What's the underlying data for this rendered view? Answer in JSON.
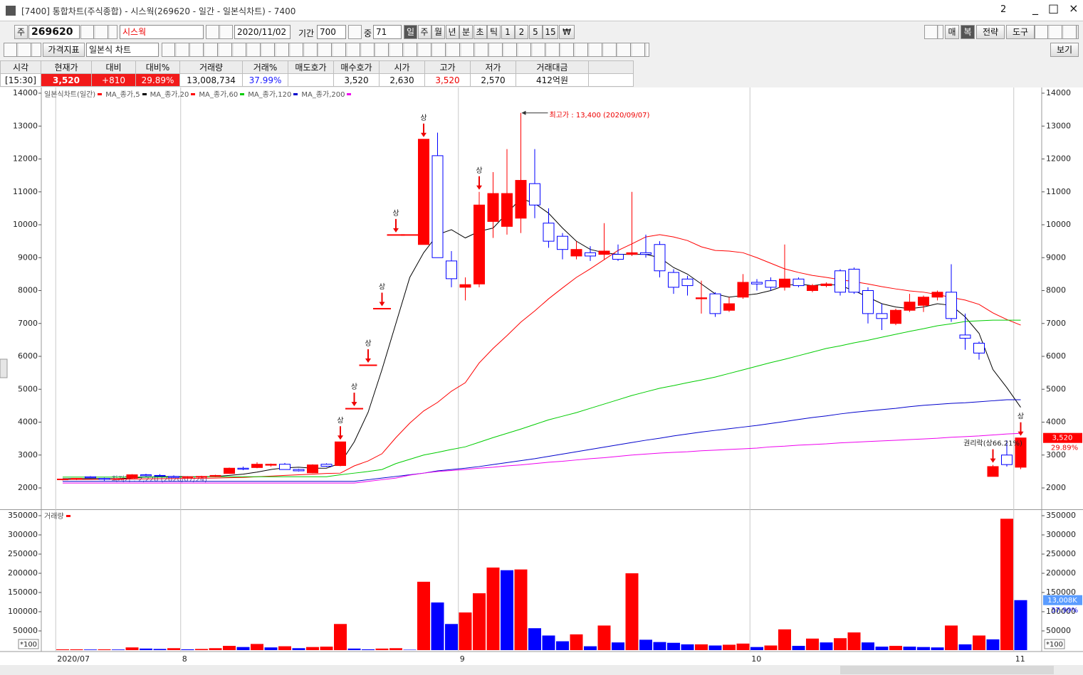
{
  "window": {
    "title": "[7400] 통합차트(주식종합) - 시스웍(269620 - 일간 - 일본식차트) - 7400",
    "badge": "2"
  },
  "toolbar": {
    "code_prefix": "주",
    "code": "269620",
    "name": "시스웍",
    "date": "2020/11/02",
    "period_label": "기간",
    "period": "700",
    "mid_label": "중",
    "mid": "71",
    "periods": [
      "일",
      "주",
      "월",
      "년",
      "분",
      "초",
      "틱",
      "1",
      "2",
      "5",
      "15",
      "₩"
    ],
    "right_buttons": [
      "매",
      "복",
      "전략",
      "도구"
    ],
    "indicator": "가격지표",
    "chart_style": "일본식 차트",
    "view": "보기"
  },
  "quote": {
    "cells": [
      {
        "header": "시각",
        "value": "[15:30]"
      },
      {
        "header": "현재가",
        "value": "3,520"
      },
      {
        "header": "대비",
        "value": "+810"
      },
      {
        "header": "대비%",
        "value": "29.89%"
      },
      {
        "header": "거래량",
        "value": "13,008,734"
      },
      {
        "header": "거래%",
        "value": "37.99%"
      },
      {
        "header": "매도호가"
      },
      {
        "header": "매수호가",
        "value": "3,520"
      },
      {
        "header": "시가",
        "value": "2,630"
      },
      {
        "header": "고가",
        "value": "3,520"
      },
      {
        "header": "저가",
        "value": "2,570"
      },
      {
        "header": "거래대금",
        "value": "412억원"
      }
    ]
  },
  "chart_data": [
    {
      "type": "candlestick",
      "title": "일본식차트(일간)",
      "categories": [
        "2020/07",
        null,
        null,
        null,
        null,
        null,
        null,
        null,
        null,
        "8",
        null,
        null,
        null,
        null,
        null,
        null,
        null,
        null,
        null,
        null,
        null,
        null,
        null,
        null,
        null,
        null,
        null,
        null,
        null,
        "9",
        null,
        null,
        null,
        null,
        null,
        null,
        null,
        null,
        null,
        null,
        null,
        null,
        null,
        null,
        null,
        null,
        null,
        null,
        null,
        null,
        "10",
        null,
        null,
        null,
        null,
        null,
        null,
        null,
        null,
        null,
        null,
        null,
        null,
        null,
        null,
        null,
        null,
        null,
        null,
        "11"
      ],
      "open": [
        2250,
        2260,
        2340,
        2290,
        2270,
        2300,
        2400,
        2380,
        2350,
        2320,
        2330,
        2350,
        2440,
        2600,
        2620,
        2690,
        2720,
        2560,
        2460,
        2720,
        2680,
        4420,
        5740,
        7460,
        9700,
        9700,
        9400,
        12100,
        8900,
        8100,
        8200,
        10100,
        9950,
        10200,
        11250,
        10050,
        9650,
        9050,
        9150,
        9100,
        9100,
        9100,
        9150,
        9400,
        8550,
        8350,
        7750,
        7900,
        7400,
        7800,
        8250,
        8300,
        8100,
        8350,
        8000,
        8150,
        8600,
        8650,
        8000,
        7300,
        7000,
        7400,
        7550,
        7800,
        7950,
        6650,
        6400,
        2350,
        3000,
        2630
      ],
      "high": [
        2280,
        2300,
        2360,
        2310,
        2300,
        2420,
        2430,
        2420,
        2380,
        2360,
        2370,
        2400,
        2620,
        2650,
        2780,
        2740,
        2760,
        2580,
        2720,
        2750,
        3400,
        4420,
        5740,
        7460,
        9700,
        9700,
        12600,
        12800,
        9200,
        8400,
        11000,
        11600,
        12300,
        13400,
        12300,
        10500,
        9750,
        9500,
        9350,
        10050,
        9400,
        11000,
        9700,
        9500,
        8650,
        8450,
        8300,
        7950,
        7800,
        8500,
        8350,
        8400,
        9400,
        8400,
        8200,
        8250,
        8650,
        8700,
        8100,
        7600,
        7450,
        7900,
        7850,
        8000,
        8800,
        7300,
        6450,
        2700,
        3450,
        3520
      ],
      "low": [
        2230,
        2240,
        2300,
        2220,
        2240,
        2280,
        2350,
        2340,
        2300,
        2300,
        2300,
        2330,
        2430,
        2540,
        2600,
        2650,
        2560,
        2500,
        2450,
        2640,
        2660,
        4420,
        5740,
        7460,
        9700,
        9700,
        9400,
        9000,
        8100,
        7700,
        8100,
        9600,
        9700,
        9750,
        10200,
        9300,
        8950,
        8950,
        8900,
        8950,
        8900,
        9050,
        9000,
        8400,
        7900,
        7850,
        7300,
        7200,
        7350,
        7750,
        8000,
        8000,
        8000,
        8100,
        7950,
        8100,
        7850,
        7900,
        7000,
        6800,
        6950,
        7350,
        7350,
        7700,
        7050,
        6200,
        5900,
        2350,
        2650,
        2570
      ],
      "close": [
        2270,
        2290,
        2310,
        2260,
        2280,
        2400,
        2370,
        2360,
        2320,
        2340,
        2350,
        2380,
        2600,
        2570,
        2720,
        2720,
        2560,
        2520,
        2700,
        2660,
        3400,
        4420,
        5740,
        7460,
        9700,
        9700,
        12600,
        9000,
        8360,
        8180,
        10600,
        10950,
        10950,
        11350,
        10600,
        9500,
        9250,
        9250,
        9050,
        9200,
        8950,
        9150,
        9100,
        8600,
        8100,
        8150,
        7780,
        7300,
        7600,
        8250,
        8200,
        8100,
        8350,
        8150,
        8150,
        8200,
        7950,
        7950,
        7300,
        7150,
        7400,
        7650,
        7800,
        7950,
        7150,
        6550,
        6100,
        2650,
        2710,
        3520
      ],
      "up_color": "#ff0000",
      "down_color": "#0000ff",
      "series": [
        {
          "name": "MA_종가,5",
          "color": "#000000",
          "values": [
            2280,
            2280,
            2285,
            2280,
            2285,
            2300,
            2330,
            2340,
            2350,
            2340,
            2340,
            2350,
            2380,
            2420,
            2480,
            2560,
            2610,
            2630,
            2600,
            2600,
            2750,
            3400,
            4300,
            5600,
            7000,
            8400,
            9150,
            9700,
            9850,
            9600,
            9800,
            9900,
            10350,
            10800,
            10650,
            10350,
            9900,
            9500,
            9250,
            9150,
            9100,
            9100,
            9100,
            9000,
            8700,
            8500,
            8200,
            7900,
            7800,
            7850,
            7900,
            8000,
            8150,
            8200,
            8150,
            8200,
            8150,
            8000,
            7800,
            7600,
            7500,
            7450,
            7500,
            7600,
            7550,
            7200,
            6700,
            5600,
            5050,
            4450
          ]
        },
        {
          "name": "MA_종가,20",
          "color": "#ff0000",
          "values": [
            2260,
            2260,
            2260,
            2265,
            2265,
            2270,
            2275,
            2280,
            2285,
            2290,
            2295,
            2300,
            2310,
            2320,
            2340,
            2360,
            2380,
            2400,
            2420,
            2440,
            2450,
            2670,
            2820,
            3040,
            3530,
            3970,
            4340,
            4600,
            4940,
            5200,
            5800,
            6240,
            6630,
            7040,
            7380,
            7750,
            8080,
            8400,
            8660,
            8940,
            9220,
            9420,
            9630,
            9700,
            9630,
            9520,
            9330,
            9220,
            9200,
            9150,
            9000,
            8830,
            8660,
            8550,
            8460,
            8400,
            8330,
            8270,
            8200,
            8120,
            8050,
            7990,
            7950,
            7880,
            7790,
            7710,
            7580,
            7320,
            7120,
            6950
          ]
        },
        {
          "name": "MA_종가,60",
          "color": "#00cc00",
          "values": [
            2330,
            2330,
            2330,
            2330,
            2330,
            2330,
            2330,
            2330,
            2330,
            2330,
            2340,
            2340,
            2340,
            2340,
            2340,
            2340,
            2340,
            2340,
            2340,
            2340,
            2400,
            2450,
            2500,
            2560,
            2740,
            2870,
            3000,
            3080,
            3170,
            3250,
            3390,
            3530,
            3660,
            3790,
            3930,
            4070,
            4180,
            4290,
            4420,
            4550,
            4680,
            4810,
            4920,
            5030,
            5110,
            5200,
            5280,
            5370,
            5480,
            5590,
            5700,
            5810,
            5910,
            6020,
            6130,
            6240,
            6320,
            6410,
            6490,
            6580,
            6670,
            6760,
            6840,
            6930,
            6990,
            7060,
            7080,
            7100,
            7100,
            7100
          ]
        },
        {
          "name": "MA_종가,120",
          "color": "#0000cc",
          "values": [
            2200,
            2200,
            2200,
            2200,
            2200,
            2200,
            2200,
            2200,
            2200,
            2200,
            2200,
            2200,
            2200,
            2200,
            2200,
            2200,
            2200,
            2200,
            2200,
            2200,
            2200,
            2200,
            2250,
            2300,
            2350,
            2400,
            2450,
            2520,
            2560,
            2600,
            2650,
            2710,
            2770,
            2830,
            2890,
            2960,
            3030,
            3100,
            3170,
            3240,
            3310,
            3380,
            3450,
            3510,
            3580,
            3640,
            3700,
            3750,
            3800,
            3850,
            3900,
            3960,
            4020,
            4080,
            4140,
            4190,
            4250,
            4300,
            4340,
            4380,
            4420,
            4470,
            4510,
            4540,
            4570,
            4590,
            4620,
            4650,
            4680,
            4680
          ]
        },
        {
          "name": "MA_종가,200",
          "color": "#ee00ee",
          "values": [
            2150,
            2150,
            2150,
            2150,
            2150,
            2150,
            2150,
            2150,
            2150,
            2150,
            2150,
            2150,
            2150,
            2150,
            2150,
            2150,
            2150,
            2150,
            2150,
            2150,
            2150,
            2150,
            2200,
            2250,
            2300,
            2390,
            2450,
            2500,
            2530,
            2560,
            2600,
            2630,
            2670,
            2700,
            2740,
            2780,
            2810,
            2850,
            2890,
            2920,
            2960,
            3000,
            3030,
            3060,
            3080,
            3100,
            3130,
            3150,
            3170,
            3190,
            3210,
            3250,
            3270,
            3300,
            3320,
            3340,
            3370,
            3390,
            3410,
            3430,
            3450,
            3470,
            3490,
            3510,
            3540,
            3560,
            3580,
            3610,
            3640,
            3660
          ]
        }
      ],
      "ylim": [
        1373,
        14173
      ],
      "yticks": [
        2000,
        3000,
        4000,
        5000,
        6000,
        7000,
        8000,
        9000,
        10000,
        11000,
        12000,
        13000,
        14000
      ],
      "markers": [
        {
          "index": 20,
          "label": "상"
        },
        {
          "index": 21,
          "label": "상"
        },
        {
          "index": 22,
          "label": "상"
        },
        {
          "index": 23,
          "label": "상"
        },
        {
          "index": 24,
          "label": "상"
        },
        {
          "index": 26,
          "label": "상"
        },
        {
          "index": 30,
          "label": "상"
        },
        {
          "index": 67,
          "label": "권리락(상66.21%)"
        },
        {
          "index": 69,
          "label": "상"
        }
      ],
      "high_note": {
        "index": 33,
        "label": "최고가 : 13,400 (2020/09/07)"
      },
      "low_note": {
        "index": 3,
        "label": "최저가 : 2,220 (2020/07/24)"
      },
      "last": {
        "value": 3520,
        "label": "3,520",
        "change": "29.89%"
      }
    },
    {
      "type": "bar",
      "title": "거래량",
      "up_color": "#ff0000",
      "down_color": "#0000ff",
      "unit_label": "*100",
      "values": [
        2000,
        2000,
        1500,
        2000,
        1500,
        7000,
        4000,
        3000,
        5000,
        2000,
        3000,
        5000,
        11000,
        8000,
        16000,
        7000,
        10000,
        5000,
        8000,
        9000,
        68000,
        4000,
        2000,
        4000,
        5000,
        1000,
        178000,
        124000,
        68000,
        98000,
        148000,
        215000,
        208000,
        210000,
        57000,
        38000,
        23000,
        41000,
        10000,
        64000,
        20000,
        200000,
        27000,
        21000,
        19000,
        15000,
        15000,
        12000,
        14000,
        17000,
        8000,
        12000,
        54000,
        11000,
        30000,
        20000,
        31000,
        46000,
        20000,
        9000,
        11000,
        9000,
        8000,
        7000,
        64000,
        15000,
        38000,
        28000,
        342000,
        130087
      ],
      "ylim": [
        0,
        363000
      ],
      "yticks": [
        50000,
        100000,
        150000,
        200000,
        250000,
        300000,
        350000
      ],
      "last": {
        "value": 130087,
        "label": "13,008K",
        "change": "37.99%"
      }
    }
  ]
}
